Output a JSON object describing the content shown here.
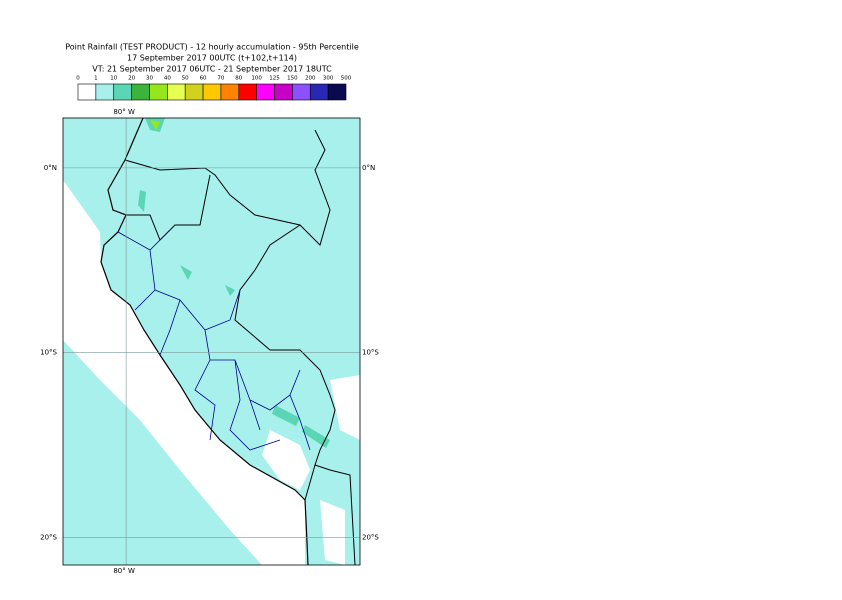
{
  "header": {
    "lines": [
      "Point Rainfall (TEST PRODUCT) - 12 hourly accumulation - 95th Percentile",
      "17 September 2017 00UTC (t+102,t+114)",
      "VT: 21 September 2017 06UTC - 21 September 2017 18UTC"
    ]
  },
  "legend": {
    "thresholds": [
      0,
      1,
      10,
      20,
      30,
      40,
      50,
      60,
      70,
      80,
      100,
      125,
      150,
      200,
      300,
      500
    ],
    "colors": [
      "#ffffff",
      "#a8f0ec",
      "#5ad6b4",
      "#3cb43c",
      "#96e61e",
      "#e6ff50",
      "#d2d21e",
      "#ffc800",
      "#ff8200",
      "#ff0000",
      "#ff00ff",
      "#c800c8",
      "#8c50ff",
      "#2828b4",
      "#0a0a50"
    ]
  },
  "map": {
    "lonlim": [
      -83.4,
      -67.4
    ],
    "latlim": [
      -21.5,
      2.7
    ],
    "meridians": [
      {
        "value": -80,
        "label": "80° W"
      }
    ],
    "parallels": [
      {
        "value": 0,
        "label": "0°N"
      },
      {
        "value": -10,
        "label": "10°S"
      },
      {
        "value": -20,
        "label": "20°S"
      }
    ]
  }
}
